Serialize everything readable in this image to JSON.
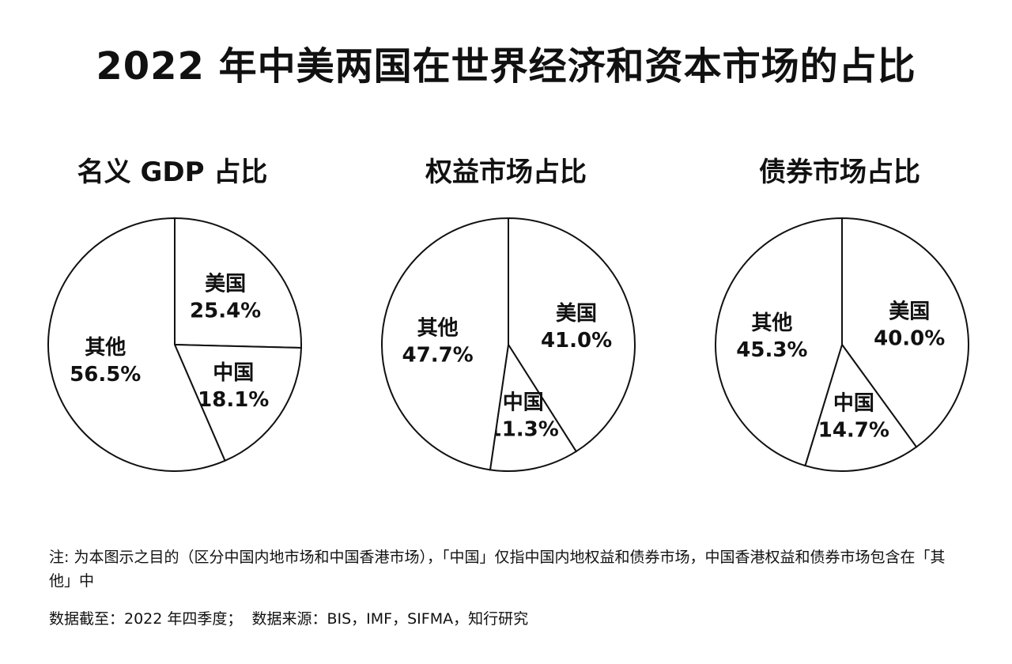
{
  "title": "2022 年中美两国在世界经济和资本市场的占比",
  "chart_data": [
    {
      "type": "pie",
      "title": "名义 GDP 占比",
      "slices": [
        {
          "name": "美国",
          "value": 25.4,
          "label": "25.4%",
          "fill": "#ffffff"
        },
        {
          "name": "中国",
          "value": 18.1,
          "label": "18.1%",
          "fill": "#ffffff"
        },
        {
          "name": "其他",
          "value": 56.5,
          "label": "56.5%",
          "fill": "#ffffff"
        }
      ]
    },
    {
      "type": "pie",
      "title": "权益市场占比",
      "slices": [
        {
          "name": "美国",
          "value": 41.0,
          "label": "41.0%",
          "fill": "#ffffff"
        },
        {
          "name": "中国",
          "value": 11.3,
          "label": "11.3%",
          "fill": "#ffffff"
        },
        {
          "name": "其他",
          "value": 47.7,
          "label": "47.7%",
          "fill": "#ffffff"
        }
      ]
    },
    {
      "type": "pie",
      "title": "债券市场占比",
      "slices": [
        {
          "name": "美国",
          "value": 40.0,
          "label": "40.0%",
          "fill": "#ffffff"
        },
        {
          "name": "中国",
          "value": 14.7,
          "label": "14.7%",
          "fill": "#ffffff"
        },
        {
          "name": "其他",
          "value": 45.3,
          "label": "45.3%",
          "fill": "#ffffff"
        }
      ]
    }
  ],
  "note": "注: 为本图示之目的（区分中国内地市场和中国香港市场），「中国」仅指中国内地权益和债券市场，中国香港权益和债券市场包含在「其他」中",
  "footer": "数据截至：2022 年四季度；  数据来源：BIS，IMF，SIFMA，知行研究"
}
